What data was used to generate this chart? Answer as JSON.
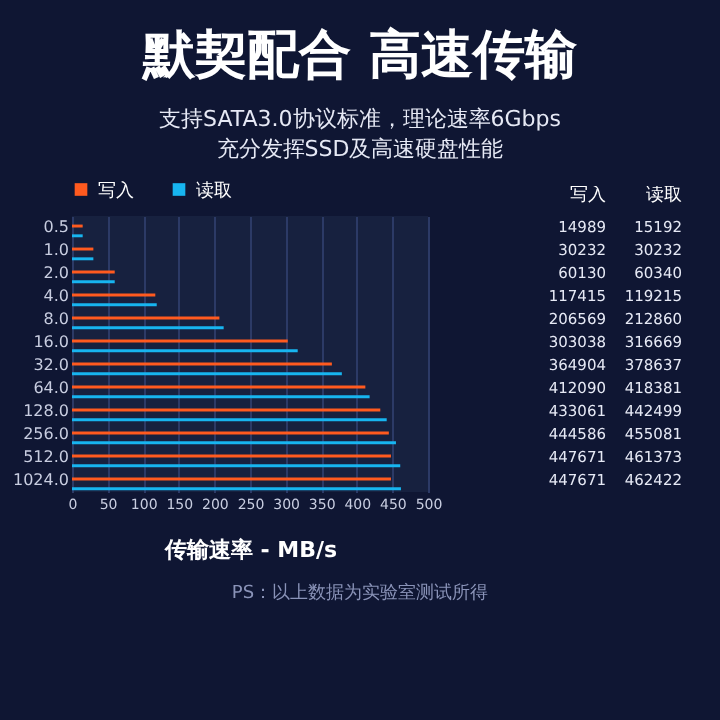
{
  "chart_data": [
    {
      "type": "bar",
      "orientation": "horizontal",
      "title": "默契配合 高速传输",
      "subtitle": "支持SATA3.0协议标准，理论速率6Gbps\n充分发挥SSD及高速硬盘性能",
      "xlabel": "传输速率 - MB/s",
      "categories": [
        "0.5",
        "1.0",
        "2.0",
        "4.0",
        "8.0",
        "16.0",
        "32.0",
        "64.0",
        "128.0",
        "256.0",
        "512.0",
        "1024.0"
      ],
      "series": [
        {
          "name": "写入",
          "color": "#ff5a1f",
          "values": [
            15,
            30,
            60,
            117,
            207,
            303,
            365,
            412,
            433,
            445,
            448,
            448
          ]
        },
        {
          "name": "读取",
          "color": "#17b5f0",
          "values": [
            15,
            30,
            60,
            119,
            213,
            317,
            379,
            418,
            442,
            455,
            461,
            462
          ]
        }
      ],
      "xlim": [
        0,
        500
      ],
      "xticks": [
        0,
        50,
        100,
        150,
        200,
        250,
        300,
        350,
        400,
        450,
        500
      ],
      "grid": "x",
      "legend": "top",
      "annotations": [
        "PS：以上数据为实验室测试所得"
      ]
    },
    {
      "type": "other",
      "annotations": [
        "写入",
        "读取",
        "14989",
        "15192",
        "30232",
        "30232",
        "60130",
        "60340",
        "117415",
        "119215",
        "206569",
        "212860",
        "303038",
        "316669",
        "364904",
        "378637",
        "412090",
        "418381",
        "433061",
        "442499",
        "444586",
        "455081",
        "447671",
        "461373",
        "447671",
        "462422"
      ]
    }
  ]
}
